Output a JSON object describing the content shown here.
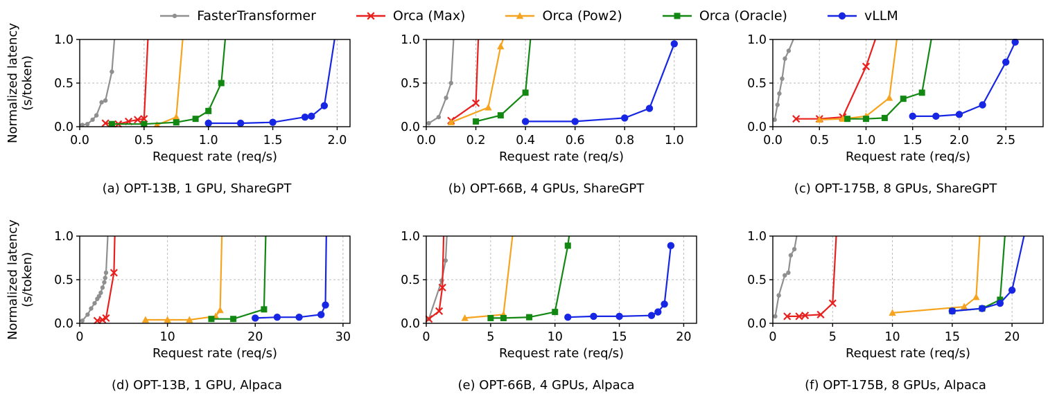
{
  "figure": {
    "ylabel_line1": "Normalized latency",
    "ylabel_line2": "(s/token)",
    "xlabel": "Request rate (req/s)"
  },
  "legend": {
    "entries": [
      {
        "name": "FasterTransformer",
        "color": "#8f8f8f",
        "marker": "dot"
      },
      {
        "name": "Orca (Max)",
        "color": "#e8201d",
        "marker": "x"
      },
      {
        "name": "Orca (Pow2)",
        "color": "#f6a41f",
        "marker": "triangle"
      },
      {
        "name": "Orca (Oracle)",
        "color": "#128712",
        "marker": "square"
      },
      {
        "name": "vLLM",
        "color": "#1626e3",
        "marker": "circle"
      }
    ]
  },
  "chart_data": [
    {
      "type": "line",
      "caption": "(a) OPT-13B, 1 GPU, ShareGPT",
      "xlabel": "Request rate (req/s)",
      "ylabel": "Normalized latency (s/token)",
      "xlim": [
        0,
        2.1
      ],
      "ylim": [
        0,
        1.0
      ],
      "grid": true,
      "xticks": {
        "values": [
          0,
          0.5,
          1.0,
          1.5,
          2.0
        ],
        "labels": [
          "0.0",
          "0.5",
          "1.0",
          "1.5",
          "2.0"
        ]
      },
      "yticks": {
        "values": [
          0,
          0.5,
          1.0
        ],
        "labels": [
          "0.0",
          "0.5",
          "1.0"
        ]
      },
      "series": [
        {
          "name": "FasterTransformer",
          "points": [
            [
              0.02,
              0.02
            ],
            [
              0.06,
              0.03
            ],
            [
              0.1,
              0.08
            ],
            [
              0.13,
              0.13
            ],
            [
              0.17,
              0.28
            ],
            [
              0.2,
              0.3
            ],
            [
              0.25,
              0.63
            ],
            [
              0.27,
              1.0
            ]
          ]
        },
        {
          "name": "Orca (Max)",
          "points": [
            [
              0.2,
              0.04
            ],
            [
              0.3,
              0.03
            ],
            [
              0.38,
              0.06
            ],
            [
              0.45,
              0.08
            ],
            [
              0.5,
              0.09
            ],
            [
              0.53,
              1.0
            ]
          ]
        },
        {
          "name": "Orca (Pow2)",
          "points": [
            [
              0.6,
              0.02
            ],
            [
              0.75,
              0.11
            ],
            [
              0.8,
              1.0
            ]
          ]
        },
        {
          "name": "Orca (Oracle)",
          "points": [
            [
              0.25,
              0.03
            ],
            [
              0.5,
              0.03
            ],
            [
              0.75,
              0.05
            ],
            [
              0.9,
              0.09
            ],
            [
              1.0,
              0.18
            ],
            [
              1.1,
              0.5
            ],
            [
              1.13,
              1.0
            ]
          ]
        },
        {
          "name": "vLLM",
          "points": [
            [
              1.0,
              0.04
            ],
            [
              1.25,
              0.04
            ],
            [
              1.5,
              0.05
            ],
            [
              1.75,
              0.11
            ],
            [
              1.8,
              0.12
            ],
            [
              1.9,
              0.24
            ],
            [
              1.98,
              1.0
            ]
          ]
        }
      ]
    },
    {
      "type": "line",
      "caption": "(b) OPT-66B, 4 GPUs, ShareGPT",
      "xlabel": "Request rate (req/s)",
      "ylabel": "Normalized latency (s/token)",
      "xlim": [
        0,
        1.09
      ],
      "ylim": [
        0,
        1.0
      ],
      "grid": true,
      "xticks": {
        "values": [
          0,
          0.2,
          0.4,
          0.6,
          0.8,
          1.0
        ],
        "labels": [
          "0.0",
          "0.2",
          "0.4",
          "0.6",
          "0.8",
          "1.0"
        ]
      },
      "yticks": {
        "values": [
          0,
          0.5,
          1.0
        ],
        "labels": [
          "0.0",
          "0.5",
          "1.0"
        ]
      },
      "series": [
        {
          "name": "FasterTransformer",
          "points": [
            [
              0.01,
              0.04
            ],
            [
              0.05,
              0.11
            ],
            [
              0.08,
              0.33
            ],
            [
              0.1,
              0.5
            ],
            [
              0.11,
              1.0
            ]
          ]
        },
        {
          "name": "Orca (Max)",
          "points": [
            [
              0.1,
              0.07
            ],
            [
              0.2,
              0.27
            ],
            [
              0.21,
              1.0
            ]
          ]
        },
        {
          "name": "Orca (Pow2)",
          "points": [
            [
              0.1,
              0.05
            ],
            [
              0.25,
              0.22
            ],
            [
              0.3,
              0.92
            ],
            [
              0.31,
              1.0
            ]
          ]
        },
        {
          "name": "Orca (Oracle)",
          "points": [
            [
              0.2,
              0.06
            ],
            [
              0.3,
              0.13
            ],
            [
              0.4,
              0.39
            ],
            [
              0.42,
              1.0
            ]
          ]
        },
        {
          "name": "vLLM",
          "points": [
            [
              0.4,
              0.06
            ],
            [
              0.6,
              0.06
            ],
            [
              0.8,
              0.1
            ],
            [
              0.9,
              0.21
            ],
            [
              1.0,
              0.95
            ]
          ]
        }
      ]
    },
    {
      "type": "line",
      "caption": "(c) OPT-175B, 8 GPUs, ShareGPT",
      "xlabel": "Request rate (req/s)",
      "ylabel": "Normalized latency (s/token)",
      "xlim": [
        0,
        2.9
      ],
      "ylim": [
        0,
        1.0
      ],
      "grid": true,
      "xticks": {
        "values": [
          0,
          0.5,
          1.0,
          1.5,
          2.0,
          2.5
        ],
        "labels": [
          "0.0",
          "0.5",
          "1.0",
          "1.5",
          "2.0",
          "2.5"
        ]
      },
      "yticks": {
        "values": [
          0,
          0.5,
          1.0
        ],
        "labels": [
          "0.0",
          "0.5",
          "1.0"
        ]
      },
      "series": [
        {
          "name": "FasterTransformer",
          "points": [
            [
              0.02,
              0.08
            ],
            [
              0.05,
              0.25
            ],
            [
              0.07,
              0.38
            ],
            [
              0.1,
              0.55
            ],
            [
              0.13,
              0.78
            ],
            [
              0.17,
              0.87
            ],
            [
              0.22,
              1.0
            ]
          ]
        },
        {
          "name": "Orca (Max)",
          "points": [
            [
              0.25,
              0.09
            ],
            [
              0.5,
              0.09
            ],
            [
              0.75,
              0.11
            ],
            [
              1.0,
              0.69
            ],
            [
              1.1,
              1.0
            ]
          ]
        },
        {
          "name": "Orca (Pow2)",
          "points": [
            [
              0.5,
              0.08
            ],
            [
              0.75,
              0.09
            ],
            [
              1.0,
              0.12
            ],
            [
              1.25,
              0.33
            ],
            [
              1.33,
              1.0
            ]
          ]
        },
        {
          "name": "Orca (Oracle)",
          "points": [
            [
              0.8,
              0.09
            ],
            [
              1.0,
              0.09
            ],
            [
              1.2,
              0.1
            ],
            [
              1.4,
              0.32
            ],
            [
              1.6,
              0.39
            ],
            [
              1.7,
              1.0
            ]
          ]
        },
        {
          "name": "vLLM",
          "points": [
            [
              1.5,
              0.12
            ],
            [
              1.75,
              0.12
            ],
            [
              2.0,
              0.14
            ],
            [
              2.25,
              0.25
            ],
            [
              2.5,
              0.74
            ],
            [
              2.6,
              0.97
            ]
          ]
        }
      ]
    },
    {
      "type": "line",
      "caption": "(d) OPT-13B, 1 GPU, Alpaca",
      "xlabel": "Request rate (req/s)",
      "ylabel": "Normalized latency (s/token)",
      "xlim": [
        0,
        30.8
      ],
      "ylim": [
        0,
        1.0
      ],
      "grid": true,
      "xticks": {
        "values": [
          0,
          10,
          20,
          30
        ],
        "labels": [
          "0",
          "10",
          "20",
          "30"
        ]
      },
      "yticks": {
        "values": [
          0,
          0.5,
          1.0
        ],
        "labels": [
          "0.0",
          "0.5",
          "1.0"
        ]
      },
      "series": [
        {
          "name": "FasterTransformer",
          "points": [
            [
              0.3,
              0.03
            ],
            [
              0.9,
              0.1
            ],
            [
              1.3,
              0.17
            ],
            [
              1.7,
              0.23
            ],
            [
              2.0,
              0.28
            ],
            [
              2.2,
              0.31
            ],
            [
              2.4,
              0.35
            ],
            [
              2.6,
              0.41
            ],
            [
              2.8,
              0.47
            ],
            [
              2.9,
              0.52
            ],
            [
              3.0,
              0.58
            ],
            [
              3.2,
              1.0
            ]
          ]
        },
        {
          "name": "Orca (Max)",
          "points": [
            [
              2.0,
              0.03
            ],
            [
              2.6,
              0.04
            ],
            [
              3.0,
              0.06
            ],
            [
              3.9,
              0.58
            ],
            [
              4.0,
              1.0
            ]
          ]
        },
        {
          "name": "Orca (Pow2)",
          "points": [
            [
              7.5,
              0.04
            ],
            [
              10.0,
              0.04
            ],
            [
              12.5,
              0.04
            ],
            [
              15.5,
              0.08
            ],
            [
              16.0,
              0.15
            ],
            [
              16.2,
              1.0
            ]
          ]
        },
        {
          "name": "Orca (Oracle)",
          "points": [
            [
              15.0,
              0.05
            ],
            [
              17.5,
              0.05
            ],
            [
              21.0,
              0.16
            ],
            [
              21.2,
              1.0
            ]
          ]
        },
        {
          "name": "vLLM",
          "points": [
            [
              20.0,
              0.06
            ],
            [
              22.5,
              0.07
            ],
            [
              25.0,
              0.07
            ],
            [
              27.5,
              0.1
            ],
            [
              28.0,
              0.21
            ],
            [
              28.1,
              1.0
            ]
          ]
        }
      ]
    },
    {
      "type": "line",
      "caption": "(e) OPT-66B, 4 GPUs, Alpaca",
      "xlabel": "Request rate (req/s)",
      "ylabel": "Normalized latency (s/token)",
      "xlim": [
        0,
        21
      ],
      "ylim": [
        0,
        1.0
      ],
      "grid": true,
      "xticks": {
        "values": [
          0,
          5,
          10,
          15,
          20
        ],
        "labels": [
          "0",
          "5",
          "10",
          "15",
          "20"
        ]
      },
      "yticks": {
        "values": [
          0,
          0.5,
          1.0
        ],
        "labels": [
          "0.0",
          "0.5",
          "1.0"
        ]
      },
      "series": [
        {
          "name": "FasterTransformer",
          "points": [
            [
              0.2,
              0.05
            ],
            [
              1.2,
              0.49
            ],
            [
              1.5,
              0.72
            ],
            [
              1.6,
              1.0
            ]
          ]
        },
        {
          "name": "Orca (Max)",
          "points": [
            [
              0.2,
              0.05
            ],
            [
              1.0,
              0.14
            ],
            [
              1.25,
              0.41
            ],
            [
              1.35,
              1.0
            ]
          ]
        },
        {
          "name": "Orca (Pow2)",
          "points": [
            [
              3.0,
              0.06
            ],
            [
              6.0,
              0.1
            ],
            [
              6.7,
              1.0
            ]
          ]
        },
        {
          "name": "Orca (Oracle)",
          "points": [
            [
              5.0,
              0.06
            ],
            [
              6.0,
              0.06
            ],
            [
              8.0,
              0.07
            ],
            [
              10.0,
              0.13
            ],
            [
              11.0,
              0.89
            ],
            [
              11.1,
              1.0
            ]
          ]
        },
        {
          "name": "vLLM",
          "points": [
            [
              11.0,
              0.07
            ],
            [
              13.0,
              0.08
            ],
            [
              15.0,
              0.08
            ],
            [
              17.5,
              0.09
            ],
            [
              18.0,
              0.13
            ],
            [
              18.5,
              0.22
            ],
            [
              19.0,
              0.89
            ]
          ]
        }
      ]
    },
    {
      "type": "line",
      "caption": "(f) OPT-175B, 8 GPUs, Alpaca",
      "xlabel": "Request rate (req/s)",
      "ylabel": "Normalized latency (s/token)",
      "xlim": [
        0,
        22.6
      ],
      "ylim": [
        0,
        1.0
      ],
      "grid": true,
      "xticks": {
        "values": [
          0,
          5,
          10,
          15,
          20
        ],
        "labels": [
          "0",
          "5",
          "10",
          "15",
          "20"
        ]
      },
      "yticks": {
        "values": [
          0,
          0.5,
          1.0
        ],
        "labels": [
          "0.0",
          "0.5",
          "1.0"
        ]
      },
      "series": [
        {
          "name": "FasterTransformer",
          "points": [
            [
              0.2,
              0.08
            ],
            [
              0.5,
              0.32
            ],
            [
              1.0,
              0.55
            ],
            [
              1.3,
              0.58
            ],
            [
              1.5,
              0.78
            ],
            [
              1.8,
              0.85
            ],
            [
              2.0,
              1.0
            ]
          ]
        },
        {
          "name": "Orca (Max)",
          "points": [
            [
              1.2,
              0.08
            ],
            [
              2.2,
              0.08
            ],
            [
              2.7,
              0.09
            ],
            [
              4.0,
              0.1
            ],
            [
              5.0,
              0.23
            ],
            [
              5.3,
              1.0
            ]
          ]
        },
        {
          "name": "Orca (Pow2)",
          "points": [
            [
              10.0,
              0.12
            ],
            [
              16.0,
              0.19
            ],
            [
              17.0,
              0.3
            ],
            [
              17.3,
              1.0
            ]
          ]
        },
        {
          "name": "Orca (Oracle)",
          "points": [
            [
              15.0,
              0.14
            ],
            [
              17.5,
              0.17
            ],
            [
              19.0,
              0.27
            ],
            [
              19.4,
              1.0
            ]
          ]
        },
        {
          "name": "vLLM",
          "points": [
            [
              15.0,
              0.14
            ],
            [
              17.5,
              0.17
            ],
            [
              19.0,
              0.23
            ],
            [
              20.0,
              0.38
            ],
            [
              21.0,
              1.0
            ]
          ]
        }
      ]
    }
  ]
}
